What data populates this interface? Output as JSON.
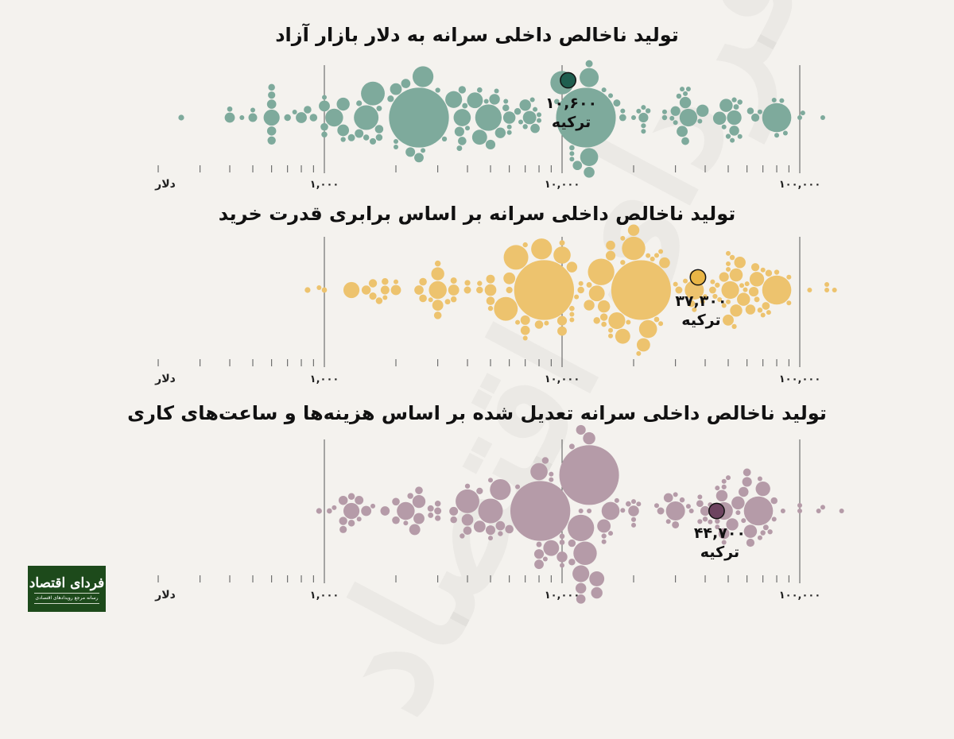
{
  "logo": {
    "name": "فردای اقتصاد",
    "tagline": "رسانه مرجع رویدادهای اقتصادی"
  },
  "watermark": "فردای اقتصاد",
  "colors": {
    "background": "#f4f2ee",
    "grid": "#555555"
  },
  "chart_data": [
    {
      "type": "scatter",
      "variant": "beeswarm",
      "title": "تولید ناخالص داخلی سرانه به دلار بازار آزاد",
      "xscale": "log",
      "xlim": [
        200,
        150000
      ],
      "unit_label": "دلار",
      "major_ticks": [
        1000,
        10000,
        100000
      ],
      "tick_labels": [
        "۱,۰۰۰",
        "۱۰,۰۰۰",
        "۱۰۰,۰۰۰"
      ],
      "color": "#7eaa9c",
      "highlight": {
        "label": "ترکیه",
        "value": 10600,
        "value_label": "۱۰,۶۰۰",
        "population": 85,
        "color": "#1f5e4f"
      },
      "population": [
        1420,
        1410,
        335,
        277,
        240,
        223,
        216,
        172,
        144,
        128,
        126,
        124,
        117,
        112,
        102,
        99,
        89,
        84,
        71,
        68,
        68,
        67,
        60,
        59,
        55,
        54,
        52,
        52,
        48,
        48,
        48,
        46,
        45,
        45,
        41,
        39,
        37,
        37,
        37,
        37,
        36,
        35,
        34,
        34,
        34,
        34,
        33,
        30,
        30,
        28,
        28,
        27,
        26,
        24,
        23,
        23,
        23,
        22,
        21,
        20,
        20,
        20,
        19,
        18,
        18,
        18,
        18,
        18,
        18,
        17,
        16,
        14,
        14,
        13,
        13,
        12,
        12,
        12,
        12,
        11,
        11,
        11,
        11,
        10.5,
        10.5,
        10.4,
        10.3,
        10,
        10,
        10,
        10,
        10,
        9.7,
        9.6,
        9.2,
        9,
        9,
        8.8,
        8.6,
        7.6,
        7,
        7,
        7,
        6.9,
        6.7,
        6.5,
        6.3,
        6,
        6,
        5.7,
        5.6,
        5.5,
        5.4,
        5.4,
        5.2,
        5.2,
        5.2,
        4.6,
        4.4,
        4.3,
        3.9,
        3.7,
        3.4,
        3.4,
        2.8,
        2.8,
        2.8,
        2.7,
        2.6,
        2.6,
        2.1,
        1.9,
        1.5,
        1.4,
        1.3,
        1.2,
        0.65,
        0.5,
        0.4
      ],
      "values": [
        2500,
        12600,
        80000,
        4900,
        1500,
        1600,
        10000,
        2600,
        13000,
        13000,
        1100,
        34000,
        3800,
        3500,
        600,
        4300,
        4500,
        53000,
        7300,
        49000,
        46000,
        1200,
        6000,
        39000,
        2000,
        1200,
        7000,
        33000,
        800,
        1000,
        32000,
        13000,
        5200,
        5500,
        400,
        53000,
        22000,
        3700,
        30000,
        5000,
        2300,
        2500,
        600,
        7700,
        11600,
        2200,
        600,
        1400,
        500,
        1700,
        3800,
        600,
        65000,
        33000,
        1000,
        900,
        850,
        3800,
        600,
        17000,
        13000,
        1300,
        18000,
        6500,
        62000,
        5800,
        1700,
        700,
        600,
        1900,
        1600,
        1500,
        1000,
        1400,
        250,
        3900,
        3700,
        54000,
        1700,
        9500,
        400,
        11000,
        4500,
        31000,
        56000,
        23000,
        27000,
        7000,
        3200,
        50000,
        1200,
        3000,
        53000,
        22000,
        7500,
        56000,
        1000,
        100000,
        500,
        2000,
        6700,
        2600,
        2000,
        6000,
        11000,
        15000,
        5300,
        68000,
        84000,
        450,
        52000,
        87000,
        4000,
        750,
        103000,
        48000,
        16000,
        20000,
        18000,
        33000,
        21000,
        8000,
        5800,
        22000,
        8000,
        27000,
        6000,
        80000,
        4800,
        7700,
        32000,
        22000,
        29000,
        30000,
        11000,
        34000,
        125000,
        38000,
        78000
      ]
    },
    {
      "type": "scatter",
      "variant": "beeswarm",
      "title": "تولید ناخالص داخلی سرانه بر اساس برابری قدرت خرید",
      "xscale": "log",
      "xlim": [
        200,
        150000
      ],
      "unit_label": "دلار",
      "major_ticks": [
        1000,
        10000,
        100000
      ],
      "tick_labels": [
        "۱,۰۰۰",
        "۱۰,۰۰۰",
        "۱۰۰,۰۰۰"
      ],
      "color": "#edc36e",
      "highlight": {
        "label": "ترکیه",
        "value": 37300,
        "value_label": "۳۷,۳۰۰",
        "population": 85,
        "color": "#e9b545"
      },
      "population": [
        1420,
        1410,
        335,
        277,
        240,
        223,
        216,
        172,
        144,
        128,
        126,
        124,
        117,
        112,
        102,
        99,
        89,
        84,
        71,
        68,
        68,
        67,
        60,
        59,
        55,
        54,
        52,
        52,
        48,
        48,
        48,
        46,
        45,
        45,
        41,
        39,
        37,
        37,
        37,
        37,
        36,
        35,
        34,
        34,
        34,
        34,
        33,
        30,
        30,
        28,
        28,
        27,
        26,
        24,
        23,
        23,
        23,
        22,
        21,
        20,
        20,
        20,
        19,
        18,
        18,
        18,
        18,
        18,
        18,
        17,
        16,
        14,
        14,
        13,
        13,
        12,
        12,
        12,
        12,
        11,
        11,
        11,
        11,
        10.5,
        10.5,
        10.4,
        10.3,
        10,
        10,
        10,
        10,
        10,
        9.7,
        9.6,
        9.2,
        9,
        9,
        8.8,
        8.6,
        7.6,
        7,
        7,
        7,
        6.9,
        6.7,
        6.5,
        6.3,
        6,
        6,
        5.7,
        5.6,
        5.5,
        5.4,
        5.4,
        5.2,
        5.2,
        5.2,
        4.6,
        4.4,
        4.3,
        3.9,
        3.7,
        3.4,
        3.4,
        2.8,
        2.8,
        2.8,
        2.7,
        2.6,
        2.6,
        2.1,
        1.9,
        1.5,
        1.4,
        1.3,
        1.2,
        0.65,
        0.5,
        0.4
      ],
      "values": [
        8400,
        21500,
        80000,
        14600,
        6400,
        5800,
        20000,
        8200,
        36000,
        23000,
        3000,
        51000,
        10000,
        17000,
        1300,
        14000,
        18000,
        66000,
        22000,
        54000,
        58000,
        3000,
        15000,
        54000,
        6000,
        5000,
        20000,
        56000,
        3500,
        3000,
        50000,
        27000,
        13000,
        11000,
        2000,
        62000,
        48000,
        10000,
        64000,
        16000,
        7000,
        10000,
        2500,
        16000,
        36000,
        7000,
        1500,
        5000,
        1800,
        5000,
        8000,
        1600,
        65000,
        72000,
        3000,
        2600,
        2600,
        15000,
        1600,
        31000,
        35000,
        4000,
        43000,
        14000,
        74000,
        12000,
        4500,
        1700,
        1800,
        6000,
        3500,
        3500,
        3000,
        4000,
        850,
        13000,
        10000,
        66000,
        3300,
        15000,
        1000,
        25000,
        11000,
        52000,
        68000,
        39000,
        45000,
        18000,
        7000,
        80000,
        5000,
        4500,
        53000,
        44000,
        24000,
        70000,
        2800,
        90000,
        2000,
        8600,
        23000,
        7000,
        6500,
        16000,
        25000,
        33000,
        11000,
        74000,
        130000,
        950,
        59000,
        90000,
        12000,
        1800,
        130000,
        50000,
        26000,
        40000,
        36000,
        50000,
        43000,
        21000,
        16000,
        30000,
        19000,
        48000,
        11500,
        110000,
        11000,
        18000,
        50000,
        39000,
        57000,
        46000,
        26000,
        50000,
        140000,
        60000,
        70000
      ]
    },
    {
      "type": "scatter",
      "variant": "beeswarm",
      "title": "تولید ناخالص داخلی سرانه تعدیل شده بر اساس هزینه‌ها و ساعت‌های کاری",
      "xscale": "log",
      "xlim": [
        200,
        150000
      ],
      "unit_label": "دلار",
      "major_ticks": [
        1000,
        10000,
        100000
      ],
      "tick_labels": [
        "۱,۰۰۰",
        "۱۰,۰۰۰",
        "۱۰۰,۰۰۰"
      ],
      "color": "#b59ba8",
      "highlight": {
        "label": "ترکیه",
        "value": 44700,
        "value_label": "۴۴,۷۰۰",
        "population": 85,
        "color": "#6d4460"
      },
      "population": [
        1420,
        1410,
        335,
        277,
        240,
        223,
        216,
        172,
        144,
        128,
        126,
        124,
        117,
        112,
        102,
        99,
        89,
        84,
        71,
        68,
        68,
        67,
        60,
        59,
        55,
        54,
        52,
        52,
        48,
        48,
        48,
        46,
        45,
        45,
        41,
        39,
        37,
        37,
        37,
        37,
        36,
        35,
        34,
        34,
        34,
        34,
        33,
        30,
        30,
        28,
        28,
        27,
        26,
        24,
        23,
        23,
        23,
        22,
        21,
        20,
        20,
        20,
        19,
        18,
        18,
        18,
        18,
        18,
        18,
        17,
        16,
        14,
        14,
        13,
        13,
        12,
        12,
        12,
        12,
        11,
        11,
        11,
        11,
        10.5,
        10.5,
        10.4,
        10.3,
        10,
        10,
        10,
        10,
        10,
        9.7,
        9.6,
        9.2,
        9,
        9,
        8.8,
        8.6,
        7.6,
        7,
        7,
        7,
        6.9,
        6.7,
        6.5,
        6.3,
        6,
        6,
        5.7,
        5.6,
        5.5,
        5.4,
        5.4,
        5.2,
        5.2,
        5.2,
        4.6,
        4.4,
        4.3,
        3.9,
        3.7,
        3.4,
        3.4,
        2.8,
        2.8,
        2.8,
        2.7,
        2.6,
        2.6,
        2.1,
        1.9,
        1.5,
        1.4,
        1.3,
        1.2,
        0.65,
        0.5,
        0.4
      ],
      "values": [
        8100,
        13000,
        67000,
        12000,
        5000,
        4000,
        12500,
        5500,
        30000,
        16000,
        2200,
        48000,
        8000,
        12000,
        1300,
        9000,
        14000,
        70000,
        15000,
        55000,
        62000,
        2500,
        13000,
        52000,
        4500,
        4000,
        14000,
        47000,
        2500,
        2400,
        48000,
        20000,
        12000,
        10000,
        1500,
        58000,
        40000,
        8000,
        60000,
        12000,
        5000,
        8000,
        1800,
        12000,
        28000,
        5500,
        1200,
        3500,
        1400,
        4000,
        6000,
        1200,
        62000,
        60000,
        2500,
        2000,
        2000,
        11000,
        1200,
        26000,
        30000,
        3000,
        38000,
        11000,
        78000,
        8500,
        3500,
        1300,
        1300,
        4500,
        2800,
        3000,
        2300,
        3000,
        950,
        11000,
        8000,
        72000,
        2800,
        10000,
        1050,
        19000,
        10000,
        45000,
        70000,
        32000,
        40000,
        15000,
        5500,
        75000,
        4000,
        3800,
        48000,
        38000,
        20000,
        68000,
        2200,
        85000,
        1600,
        6500,
        18000,
        5000,
        5000,
        12000,
        21000,
        28000,
        8500,
        78000,
        120000,
        1100,
        58000,
        100000,
        10000,
        1400,
        125000,
        45000,
        20000,
        35000,
        30000,
        48000,
        38000,
        17000,
        13000,
        25000,
        16000,
        42000,
        9000,
        100000,
        9000,
        15000,
        48000,
        34000,
        50000,
        42000,
        20000,
        45000,
        150000,
        55000,
        68000
      ]
    }
  ]
}
